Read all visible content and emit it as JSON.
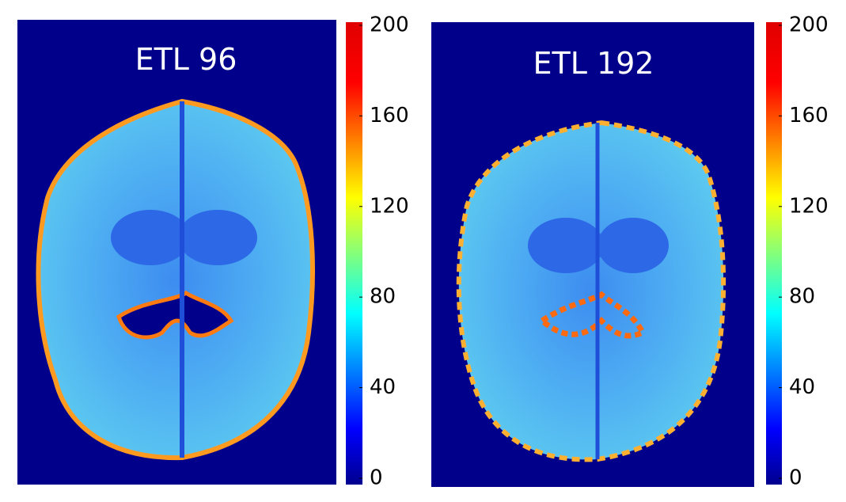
{
  "panels": [
    {
      "title": "ETL 96",
      "colorbar": {
        "lim": [
          0,
          200
        ],
        "ticks": [
          0,
          40,
          80,
          120,
          160,
          200
        ]
      }
    },
    {
      "title": "ETL 192",
      "colorbar": {
        "lim": [
          0,
          200
        ],
        "ticks": [
          0,
          40,
          80,
          120,
          160,
          200
        ]
      }
    }
  ]
}
